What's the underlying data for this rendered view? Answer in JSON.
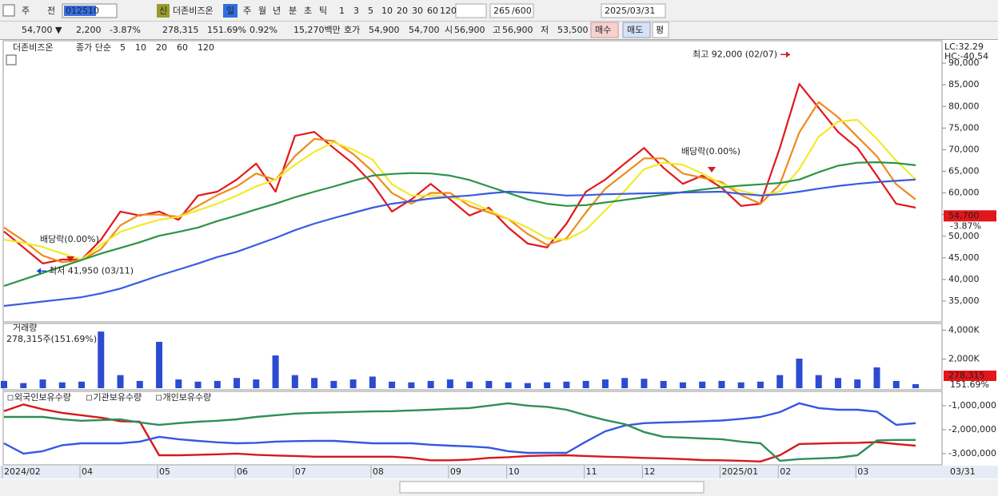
{
  "toolbar": {
    "row1": [
      "주",
      "전",
      "012510",
      "신",
      "더존비즈온",
      "일",
      "주",
      "월",
      "년",
      "분",
      "초",
      "틱",
      "1",
      "3",
      "5",
      "10",
      "20",
      "30",
      "60",
      "120",
      "265",
      "/600",
      "2025/03/31"
    ],
    "row2": [
      "54,700 ▼",
      "2,200",
      "-3.87%",
      "278,315",
      "151.69%",
      "0.92%",
      "15,270백만",
      "호가",
      "54,900",
      "54,700",
      "시",
      "56,900",
      "고",
      "56,900",
      "저",
      "53,500",
      "매수",
      "매도",
      "평"
    ]
  },
  "chart_data": [
    {
      "type": "line",
      "title": "더존비즈온",
      "legend_label": "종가 단순",
      "categories": [
        "2024/02",
        null,
        null,
        null,
        "04",
        null,
        null,
        null,
        "05",
        null,
        null,
        null,
        "06",
        null,
        null,
        "07",
        null,
        null,
        null,
        "08",
        null,
        null,
        null,
        "09",
        null,
        null,
        "10",
        null,
        null,
        null,
        "11",
        null,
        null,
        "12",
        null,
        null,
        null,
        "2025/01",
        null,
        null,
        "02",
        null,
        null,
        null,
        "03",
        null,
        null,
        null
      ],
      "end_label": "03/31",
      "ylim": [
        30200,
        95000
      ],
      "yticks": [
        {
          "value": 35000,
          "label": "35,000"
        },
        {
          "value": 40000,
          "label": "40,000"
        },
        {
          "value": 45000,
          "label": "45,000"
        },
        {
          "value": 50000,
          "label": "50,000"
        },
        {
          "value": 55000,
          "label": "55,000"
        },
        {
          "value": 60000,
          "label": "60,000"
        },
        {
          "value": 65000,
          "label": "65,000"
        },
        {
          "value": 70000,
          "label": "70,000"
        },
        {
          "value": 75000,
          "label": "75,000"
        },
        {
          "value": 80000,
          "label": "80,000"
        },
        {
          "value": 85000,
          "label": "85,000"
        },
        {
          "value": 90000,
          "label": "90,000"
        }
      ],
      "series": [
        {
          "name": "5",
          "color": "#e3161c",
          "values": [
            51100,
            47400,
            43700,
            44600,
            44600,
            49200,
            55700,
            54800,
            55700,
            53800,
            59400,
            60300,
            63100,
            66800,
            60300,
            73200,
            74100,
            70400,
            66800,
            62100,
            55700,
            58500,
            62100,
            58500,
            54800,
            56600,
            52000,
            48300,
            47400,
            52900,
            60300,
            63100,
            66800,
            70400,
            65800,
            62100,
            64000,
            61200,
            57000,
            57500,
            70400,
            85200,
            79700,
            74100,
            70400,
            64000,
            57500,
            56600
          ]
        },
        {
          "name": "10",
          "color": "#f08a1c",
          "values": [
            52000,
            49000,
            45500,
            44000,
            44500,
            47000,
            52500,
            55000,
            55000,
            54500,
            57000,
            59500,
            61500,
            64500,
            63000,
            68500,
            72500,
            72000,
            69000,
            65000,
            60000,
            57500,
            60000,
            60000,
            57000,
            55500,
            54000,
            50500,
            48000,
            49500,
            55500,
            61000,
            64500,
            68000,
            68000,
            64500,
            63500,
            62500,
            59500,
            57500,
            62000,
            74000,
            81000,
            77500,
            73000,
            68500,
            62000,
            58500
          ]
        },
        {
          "name": "20",
          "color": "#f2ea2a",
          "values": [
            49200,
            48500,
            47500,
            46000,
            44600,
            48000,
            51000,
            52500,
            53800,
            54500,
            56000,
            57500,
            59400,
            61500,
            63100,
            66500,
            69500,
            71700,
            70000,
            67700,
            62000,
            59400,
            59400,
            59000,
            58000,
            56000,
            54000,
            52000,
            49500,
            49200,
            51500,
            56000,
            60500,
            65500,
            67000,
            66500,
            64500,
            62100,
            60500,
            59400,
            60300,
            65500,
            73000,
            76500,
            76900,
            72500,
            67500,
            63100
          ]
        },
        {
          "name": "60",
          "color": "#2a9446",
          "values": [
            38500,
            40000,
            41500,
            43000,
            44500,
            46000,
            47300,
            48600,
            50100,
            51000,
            52000,
            53500,
            54800,
            56200,
            57500,
            59000,
            60300,
            61500,
            62800,
            64000,
            64400,
            64600,
            64500,
            64000,
            63000,
            61500,
            60000,
            58500,
            57500,
            57000,
            57200,
            57800,
            58400,
            59000,
            59600,
            60200,
            60800,
            61300,
            61700,
            62000,
            62300,
            63100,
            64800,
            66300,
            67000,
            67100,
            66900,
            66400
          ]
        },
        {
          "name": "120",
          "color": "#3a5ae0",
          "values": [
            33900,
            34400,
            34900,
            35400,
            35900,
            36800,
            37900,
            39400,
            40900,
            42300,
            43700,
            45200,
            46400,
            48000,
            49600,
            51400,
            52900,
            54200,
            55400,
            56600,
            57500,
            58100,
            58700,
            59100,
            59400,
            59900,
            60300,
            60100,
            59800,
            59400,
            59500,
            59700,
            59800,
            59900,
            60000,
            60100,
            60200,
            60300,
            59800,
            59400,
            59700,
            60300,
            61000,
            61600,
            62100,
            62500,
            62800,
            63100
          ]
        }
      ],
      "high": {
        "value": 92000,
        "label": "최고 92,000 (02/07)"
      },
      "low": {
        "value": 41950,
        "label": "최저 41,950 (03/11)"
      },
      "annotations": [
        "배당락(0.00%)",
        "배당락(0.00%)"
      ],
      "last": {
        "value": 54700,
        "label": "54,700",
        "change": "-3.87%"
      },
      "lc": "LC:32.29",
      "hc": "HC:-40.54"
    },
    {
      "type": "bar",
      "title": "거래량",
      "subtitle": "278,315주(151.69%)",
      "color": "#2d4bd0",
      "ylim": [
        0,
        4400
      ],
      "yticks": [
        {
          "value": 2000,
          "label": "2,000K"
        },
        {
          "value": 4000,
          "label": "4,000K"
        }
      ],
      "values": [
        500,
        350,
        600,
        400,
        450,
        3900,
        900,
        500,
        3190,
        600,
        450,
        500,
        700,
        600,
        2255,
        900,
        700,
        500,
        600,
        800,
        450,
        400,
        500,
        600,
        450,
        500,
        400,
        350,
        400,
        450,
        500,
        600,
        700,
        650,
        500,
        400,
        450,
        500,
        400,
        450,
        900,
        2035,
        900,
        700,
        600,
        1430,
        500,
        278.315
      ],
      "last_label": "278,315",
      "last_pct": "151.69%"
    },
    {
      "type": "line",
      "ylim": [
        -3470000,
        -470000
      ],
      "yticks": [
        {
          "value": -1000000,
          "label": "-1,000,000"
        },
        {
          "value": -2000000,
          "label": "-2,000,000"
        },
        {
          "value": -3000000,
          "label": "-3,000,000"
        }
      ],
      "series": [
        {
          "name": "외국인보유수량",
          "color": "#d81818",
          "values": [
            -1230000,
            -950000,
            -1150000,
            -1300000,
            -1400000,
            -1500000,
            -1650000,
            -1670000,
            -3070000,
            -3070000,
            -3050000,
            -3030000,
            -3000000,
            -3050000,
            -3080000,
            -3100000,
            -3130000,
            -3130000,
            -3130000,
            -3130000,
            -3130000,
            -3180000,
            -3280000,
            -3280000,
            -3250000,
            -3180000,
            -3150000,
            -3100000,
            -3080000,
            -3070000,
            -3100000,
            -3130000,
            -3150000,
            -3180000,
            -3200000,
            -3230000,
            -3270000,
            -3280000,
            -3300000,
            -3330000,
            -3070000,
            -2600000,
            -2580000,
            -2560000,
            -2550000,
            -2520000,
            -2600000,
            -2670000
          ]
        },
        {
          "name": "기관보유수량",
          "color": "#3558e0",
          "values": [
            -2570000,
            -3000000,
            -2900000,
            -2650000,
            -2570000,
            -2570000,
            -2570000,
            -2500000,
            -2300000,
            -2400000,
            -2470000,
            -2530000,
            -2570000,
            -2550000,
            -2500000,
            -2480000,
            -2470000,
            -2470000,
            -2520000,
            -2570000,
            -2570000,
            -2570000,
            -2630000,
            -2670000,
            -2700000,
            -2750000,
            -2900000,
            -2970000,
            -2970000,
            -2970000,
            -2500000,
            -2070000,
            -1830000,
            -1730000,
            -1700000,
            -1680000,
            -1650000,
            -1620000,
            -1550000,
            -1470000,
            -1270000,
            -900000,
            -1100000,
            -1170000,
            -1170000,
            -1250000,
            -1800000,
            -1730000
          ]
        },
        {
          "name": "개인보유수량",
          "color": "#2e8e58",
          "values": [
            -1470000,
            -1470000,
            -1470000,
            -1570000,
            -1630000,
            -1600000,
            -1570000,
            -1700000,
            -1800000,
            -1730000,
            -1670000,
            -1630000,
            -1570000,
            -1470000,
            -1400000,
            -1330000,
            -1300000,
            -1280000,
            -1260000,
            -1240000,
            -1230000,
            -1200000,
            -1170000,
            -1130000,
            -1100000,
            -1000000,
            -900000,
            -1000000,
            -1050000,
            -1170000,
            -1400000,
            -1600000,
            -1770000,
            -2100000,
            -2300000,
            -2330000,
            -2370000,
            -2400000,
            -2500000,
            -2570000,
            -3300000,
            -3230000,
            -3200000,
            -3170000,
            -3070000,
            -2450000,
            -2430000,
            -2430000
          ]
        }
      ]
    }
  ]
}
